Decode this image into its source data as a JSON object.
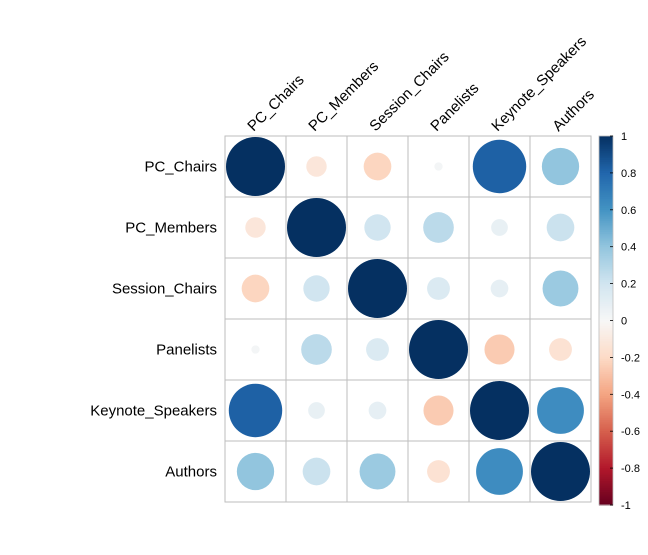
{
  "chart_data": {
    "type": "heatmap",
    "title": "",
    "variables": [
      "PC_Chairs",
      "PC_Members",
      "Session_Chairs",
      "Panelists",
      "Keynote_Speakers",
      "Authors"
    ],
    "matrix": [
      [
        1.0,
        -0.12,
        -0.22,
        0.02,
        0.82,
        0.4
      ],
      [
        -0.12,
        1.0,
        0.2,
        0.27,
        0.08,
        0.22
      ],
      [
        -0.22,
        0.2,
        1.0,
        0.15,
        0.09,
        0.37
      ],
      [
        0.02,
        0.27,
        0.15,
        1.0,
        -0.26,
        -0.15
      ],
      [
        0.82,
        0.08,
        0.09,
        -0.26,
        1.0,
        0.63
      ],
      [
        0.4,
        0.22,
        0.37,
        -0.15,
        0.63,
        1.0
      ]
    ],
    "color_scale": {
      "range": [
        -1,
        1
      ],
      "ticks": [
        "1",
        "0.8",
        "0.6",
        "0.4",
        "0.2",
        "0",
        "-0.2",
        "-0.4",
        "-0.6",
        "-0.8",
        "-1"
      ],
      "negative_color": "#67001F",
      "neutral_color": "#F7F7F7",
      "positive_color": "#053061"
    },
    "shape": "circle",
    "legend": "right"
  }
}
